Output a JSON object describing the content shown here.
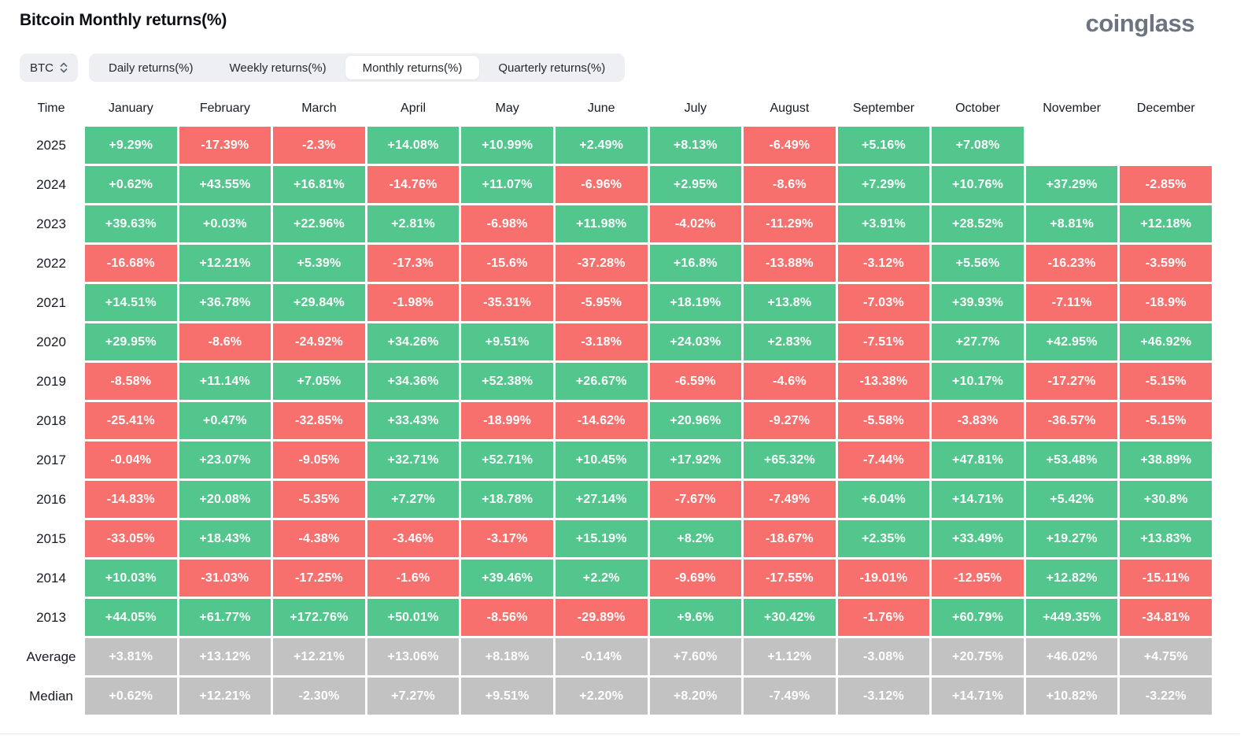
{
  "page": {
    "title": "Bitcoin Monthly returns(%)",
    "logo": "coinglass"
  },
  "controls": {
    "symbol": "BTC",
    "tabs": [
      {
        "label": "Daily returns(%)",
        "selected": false
      },
      {
        "label": "Weekly returns(%)",
        "selected": false
      },
      {
        "label": "Monthly returns(%)",
        "selected": true
      },
      {
        "label": "Quarterly returns(%)",
        "selected": false
      }
    ]
  },
  "colors": {
    "positive": "#52c68d",
    "negative": "#f7706d",
    "summary": "#c2c2c2"
  },
  "table": {
    "time_header": "Time",
    "months": [
      "January",
      "February",
      "March",
      "April",
      "May",
      "June",
      "July",
      "August",
      "September",
      "October",
      "November",
      "December"
    ],
    "rows": [
      {
        "label": "2025",
        "type": "year",
        "values": [
          "+9.29%",
          "-17.39%",
          "-2.3%",
          "+14.08%",
          "+10.99%",
          "+2.49%",
          "+8.13%",
          "-6.49%",
          "+5.16%",
          "+7.08%",
          "",
          ""
        ]
      },
      {
        "label": "2024",
        "type": "year",
        "values": [
          "+0.62%",
          "+43.55%",
          "+16.81%",
          "-14.76%",
          "+11.07%",
          "-6.96%",
          "+2.95%",
          "-8.6%",
          "+7.29%",
          "+10.76%",
          "+37.29%",
          "-2.85%"
        ]
      },
      {
        "label": "2023",
        "type": "year",
        "values": [
          "+39.63%",
          "+0.03%",
          "+22.96%",
          "+2.81%",
          "-6.98%",
          "+11.98%",
          "-4.02%",
          "-11.29%",
          "+3.91%",
          "+28.52%",
          "+8.81%",
          "+12.18%"
        ]
      },
      {
        "label": "2022",
        "type": "year",
        "values": [
          "-16.68%",
          "+12.21%",
          "+5.39%",
          "-17.3%",
          "-15.6%",
          "-37.28%",
          "+16.8%",
          "-13.88%",
          "-3.12%",
          "+5.56%",
          "-16.23%",
          "-3.59%"
        ]
      },
      {
        "label": "2021",
        "type": "year",
        "values": [
          "+14.51%",
          "+36.78%",
          "+29.84%",
          "-1.98%",
          "-35.31%",
          "-5.95%",
          "+18.19%",
          "+13.8%",
          "-7.03%",
          "+39.93%",
          "-7.11%",
          "-18.9%"
        ]
      },
      {
        "label": "2020",
        "type": "year",
        "values": [
          "+29.95%",
          "-8.6%",
          "-24.92%",
          "+34.26%",
          "+9.51%",
          "-3.18%",
          "+24.03%",
          "+2.83%",
          "-7.51%",
          "+27.7%",
          "+42.95%",
          "+46.92%"
        ]
      },
      {
        "label": "2019",
        "type": "year",
        "values": [
          "-8.58%",
          "+11.14%",
          "+7.05%",
          "+34.36%",
          "+52.38%",
          "+26.67%",
          "-6.59%",
          "-4.6%",
          "-13.38%",
          "+10.17%",
          "-17.27%",
          "-5.15%"
        ]
      },
      {
        "label": "2018",
        "type": "year",
        "values": [
          "-25.41%",
          "+0.47%",
          "-32.85%",
          "+33.43%",
          "-18.99%",
          "-14.62%",
          "+20.96%",
          "-9.27%",
          "-5.58%",
          "-3.83%",
          "-36.57%",
          "-5.15%"
        ]
      },
      {
        "label": "2017",
        "type": "year",
        "values": [
          "-0.04%",
          "+23.07%",
          "-9.05%",
          "+32.71%",
          "+52.71%",
          "+10.45%",
          "+17.92%",
          "+65.32%",
          "-7.44%",
          "+47.81%",
          "+53.48%",
          "+38.89%"
        ]
      },
      {
        "label": "2016",
        "type": "year",
        "values": [
          "-14.83%",
          "+20.08%",
          "-5.35%",
          "+7.27%",
          "+18.78%",
          "+27.14%",
          "-7.67%",
          "-7.49%",
          "+6.04%",
          "+14.71%",
          "+5.42%",
          "+30.8%"
        ]
      },
      {
        "label": "2015",
        "type": "year",
        "values": [
          "-33.05%",
          "+18.43%",
          "-4.38%",
          "-3.46%",
          "-3.17%",
          "+15.19%",
          "+8.2%",
          "-18.67%",
          "+2.35%",
          "+33.49%",
          "+19.27%",
          "+13.83%"
        ]
      },
      {
        "label": "2014",
        "type": "year",
        "values": [
          "+10.03%",
          "-31.03%",
          "-17.25%",
          "-1.6%",
          "+39.46%",
          "+2.2%",
          "-9.69%",
          "-17.55%",
          "-19.01%",
          "-12.95%",
          "+12.82%",
          "-15.11%"
        ]
      },
      {
        "label": "2013",
        "type": "year",
        "values": [
          "+44.05%",
          "+61.77%",
          "+172.76%",
          "+50.01%",
          "-8.56%",
          "-29.89%",
          "+9.6%",
          "+30.42%",
          "-1.76%",
          "+60.79%",
          "+449.35%",
          "-34.81%"
        ]
      },
      {
        "label": "Average",
        "type": "summary",
        "values": [
          "+3.81%",
          "+13.12%",
          "+12.21%",
          "+13.06%",
          "+8.18%",
          "-0.14%",
          "+7.60%",
          "+1.12%",
          "-3.08%",
          "+20.75%",
          "+46.02%",
          "+4.75%"
        ]
      },
      {
        "label": "Median",
        "type": "summary",
        "values": [
          "+0.62%",
          "+12.21%",
          "-2.30%",
          "+7.27%",
          "+9.51%",
          "+2.20%",
          "+8.20%",
          "-7.49%",
          "-3.12%",
          "+14.71%",
          "+10.82%",
          "-3.22%"
        ]
      }
    ]
  }
}
